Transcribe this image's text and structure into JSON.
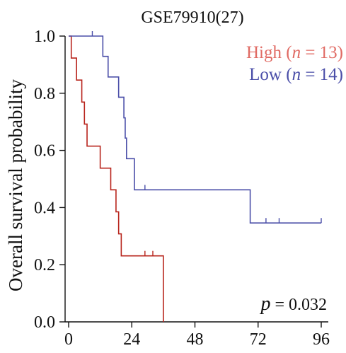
{
  "chart_data": {
    "type": "line",
    "title": "GSE79910(27)",
    "xlabel": "",
    "ylabel": "Overall survival probability",
    "xlim": [
      0,
      96
    ],
    "ylim": [
      0,
      1
    ],
    "xticks": [
      "0",
      "24",
      "48",
      "72",
      "96"
    ],
    "yticks": [
      "0.0",
      "0.2",
      "0.4",
      "0.6",
      "0.8",
      "1.0"
    ],
    "grid": false,
    "legend_position": "top-right",
    "annotation": {
      "italic": "p",
      "text": " = 0.032"
    },
    "series": [
      {
        "name": "High",
        "legend_n": "n",
        "legend_rest": " = 13)",
        "color": "#b8241c",
        "legend_color": "#e06a63",
        "steps": [
          [
            0,
            1.0
          ],
          [
            1,
            0.923
          ],
          [
            3,
            0.846
          ],
          [
            5,
            0.769
          ],
          [
            6,
            0.692
          ],
          [
            7,
            0.615
          ],
          [
            12,
            0.538
          ],
          [
            16,
            0.462
          ],
          [
            18,
            0.385
          ],
          [
            19,
            0.308
          ],
          [
            20,
            0.231
          ],
          [
            36,
            0.0
          ]
        ],
        "end_x": 36,
        "censored": [
          [
            29,
            0.231
          ],
          [
            32,
            0.231
          ]
        ]
      },
      {
        "name": "Low",
        "legend_n": "n",
        "legend_rest": " = 14)",
        "color": "#4a4ea8",
        "legend_color": "#4a4ea8",
        "steps": [
          [
            0,
            1.0
          ],
          [
            13,
            0.929
          ],
          [
            15,
            0.857
          ],
          [
            19,
            0.786
          ],
          [
            21,
            0.714
          ],
          [
            21.5,
            0.643
          ],
          [
            22,
            0.571
          ],
          [
            25,
            0.462
          ],
          [
            69,
            0.346
          ]
        ],
        "end_x": 96,
        "censored": [
          [
            9,
            1.0
          ],
          [
            29,
            0.462
          ],
          [
            75,
            0.346
          ],
          [
            80,
            0.346
          ],
          [
            96,
            0.346
          ]
        ]
      }
    ]
  }
}
